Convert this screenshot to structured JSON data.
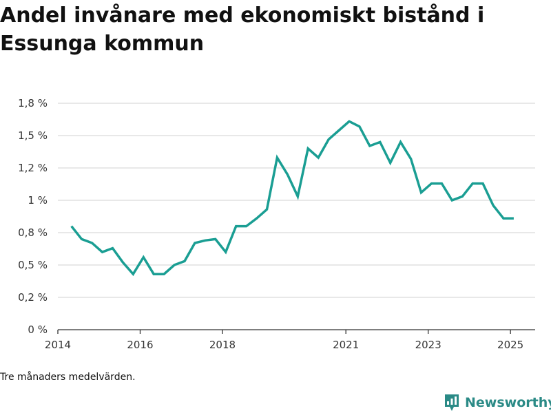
{
  "title": "Andel invånare med ekonomiskt bistånd i Essunga kommun",
  "footnote": "Tre månaders medelvärden.",
  "brand": {
    "name": "Newsworthy",
    "color": "#2a8a86",
    "icon": "bar-chart-badge-icon"
  },
  "chart_data": {
    "type": "line",
    "title": "Andel invånare med ekonomiskt bistånd i Essunga kommun",
    "xlabel": "",
    "ylabel": "",
    "x_ticks": [
      {
        "year": 2014,
        "label": "2014"
      },
      {
        "year": 2016,
        "label": "2016"
      },
      {
        "year": 2018,
        "label": "2018"
      },
      {
        "year": 2021,
        "label": "2021"
      },
      {
        "year": 2023,
        "label": "2023"
      },
      {
        "year": 2025,
        "label": "2025"
      }
    ],
    "xlim": [
      2014.0,
      2025.6
    ],
    "y_ticks": [
      {
        "value": 0,
        "label": "0 %"
      },
      {
        "value": 0.25,
        "label": "0,2 %"
      },
      {
        "value": 0.5,
        "label": "0,5 %"
      },
      {
        "value": 0.75,
        "label": "0,8 %"
      },
      {
        "value": 1.0,
        "label": "1 %"
      },
      {
        "value": 1.25,
        "label": "1,2 %"
      },
      {
        "value": 1.5,
        "label": "1,5 %"
      },
      {
        "value": 1.75,
        "label": "1,8 %"
      }
    ],
    "ylim": [
      0,
      1.75
    ],
    "grid": true,
    "line_color": "#1a9e93",
    "series": [
      {
        "x": [
          2014.33,
          2014.58,
          2014.83,
          2015.08,
          2015.33,
          2015.58,
          2015.83,
          2016.08,
          2016.33,
          2016.58,
          2016.83,
          2017.08,
          2017.33,
          2017.58,
          2017.83,
          2018.08,
          2018.33,
          2018.58,
          2018.83,
          2019.08,
          2019.33,
          2019.58,
          2019.83,
          2020.08,
          2020.33,
          2020.58,
          2020.83,
          2021.08,
          2021.33,
          2021.58,
          2021.83,
          2022.08,
          2022.33,
          2022.58,
          2022.83,
          2023.08,
          2023.33,
          2023.58,
          2023.83,
          2024.08,
          2024.33,
          2024.58,
          2024.83,
          2025.08
        ],
        "values": [
          0.8,
          0.7,
          0.67,
          0.6,
          0.63,
          0.52,
          0.43,
          0.56,
          0.43,
          0.43,
          0.5,
          0.53,
          0.67,
          0.69,
          0.7,
          0.6,
          0.8,
          0.8,
          0.86,
          0.93,
          1.33,
          1.2,
          1.03,
          1.4,
          1.33,
          1.47,
          1.54,
          1.61,
          1.57,
          1.42,
          1.45,
          1.29,
          1.45,
          1.32,
          1.06,
          1.13,
          1.13,
          1.0,
          1.03,
          1.13,
          1.13,
          0.96,
          0.86,
          0.86
        ]
      }
    ]
  }
}
